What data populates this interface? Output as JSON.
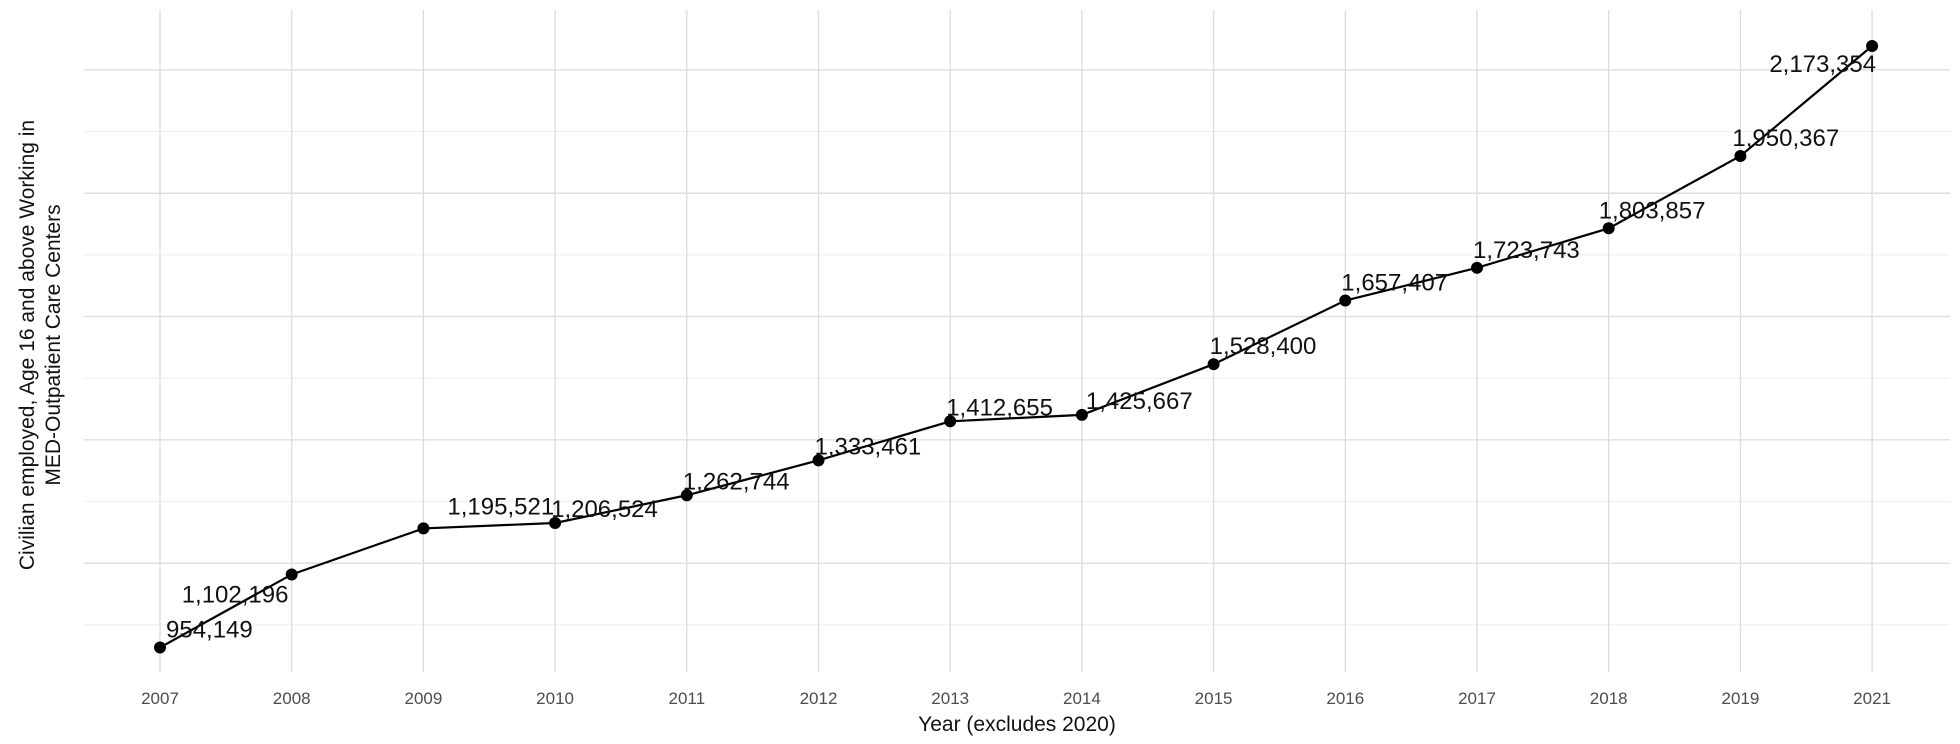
{
  "chart_data": {
    "type": "line",
    "title": "",
    "xlabel": "Year (excludes 2020)",
    "ylabel_lines": [
      "Civilian employed, Age 16 and above Working in",
      "MED-Outpatient Care Centers"
    ],
    "x": [
      "2007",
      "2008",
      "2009",
      "2010",
      "2011",
      "2012",
      "2013",
      "2014",
      "2015",
      "2016",
      "2017",
      "2018",
      "2019",
      "2021"
    ],
    "values": [
      954149,
      1102196,
      1195521,
      1206524,
      1262744,
      1333461,
      1412655,
      1425667,
      1528400,
      1657407,
      1723743,
      1803857,
      1950367,
      2173354
    ],
    "labels": [
      "954,149",
      "1,102,196",
      "1,195,521",
      "1,206,524",
      "1,262,744",
      "1,333,461",
      "1,412,655",
      "1,425,667",
      "1,528,400",
      "1,657,407",
      "1,723,743",
      "1,803,857",
      "1,950,367",
      "2,173,354"
    ],
    "ylim": [
      900000,
      2200000
    ],
    "y_gridlines": [
      1125000,
      1375000,
      1625000,
      1875000,
      2125000
    ],
    "y_tick_labels_shown": false,
    "grid": true,
    "legend": "none",
    "line_color": "#000000",
    "point_color": "#000000"
  }
}
